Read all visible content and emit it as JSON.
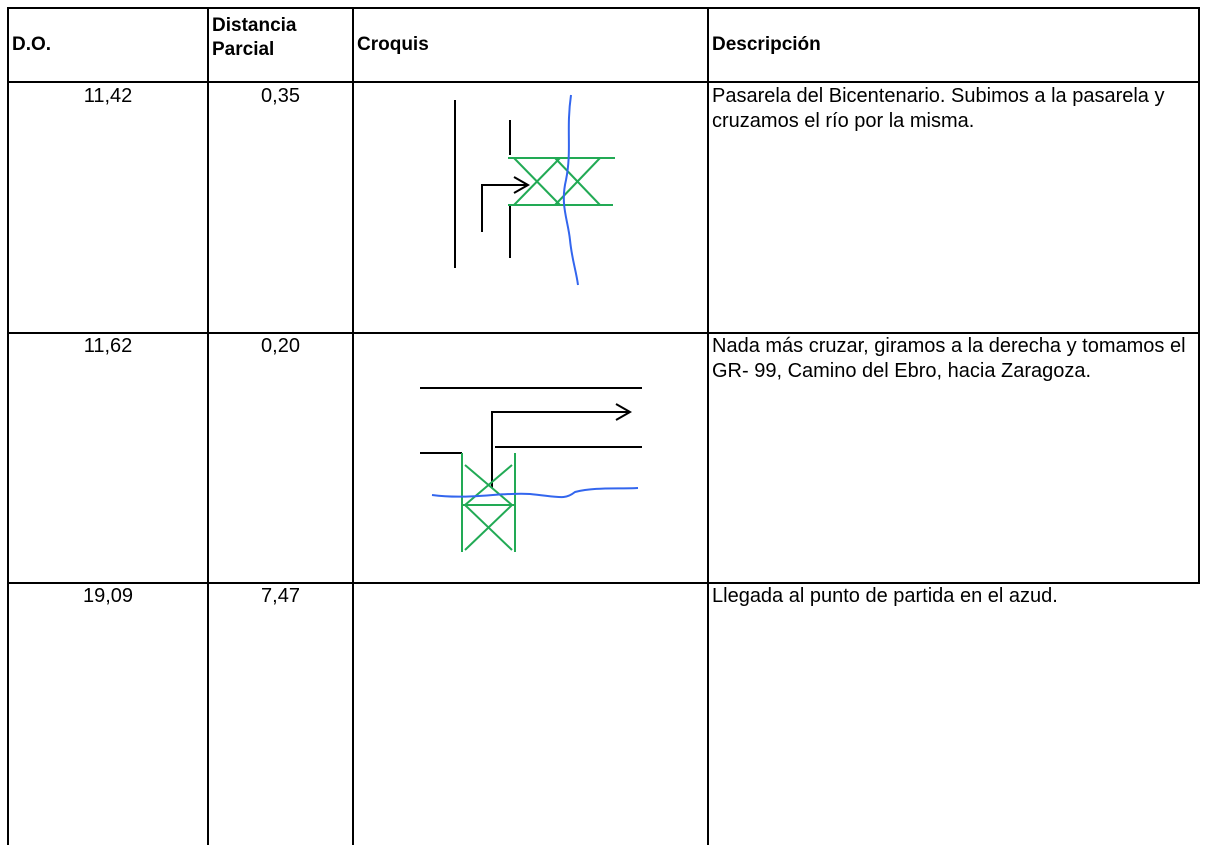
{
  "table": {
    "header": [
      "D.O.",
      "Distancia Parcial",
      "Croquis",
      "Descripción"
    ],
    "rows": [
      {
        "do": "11,42",
        "parcial": "0,35",
        "descripcion": "Pasarela del Bicentenario. Subimos a la pasarela y cruzamos el río por la misma."
      },
      {
        "do": "11,62",
        "parcial": "0,20",
        "descripcion": "Nada más cruzar, giramos a la derecha y tomamos el GR- 99, Camino del Ebro, hacia Zaragoza."
      },
      {
        "do": "19,09",
        "parcial": "7,47",
        "descripcion": "Llegada al punto de partida en el azud."
      }
    ]
  }
}
